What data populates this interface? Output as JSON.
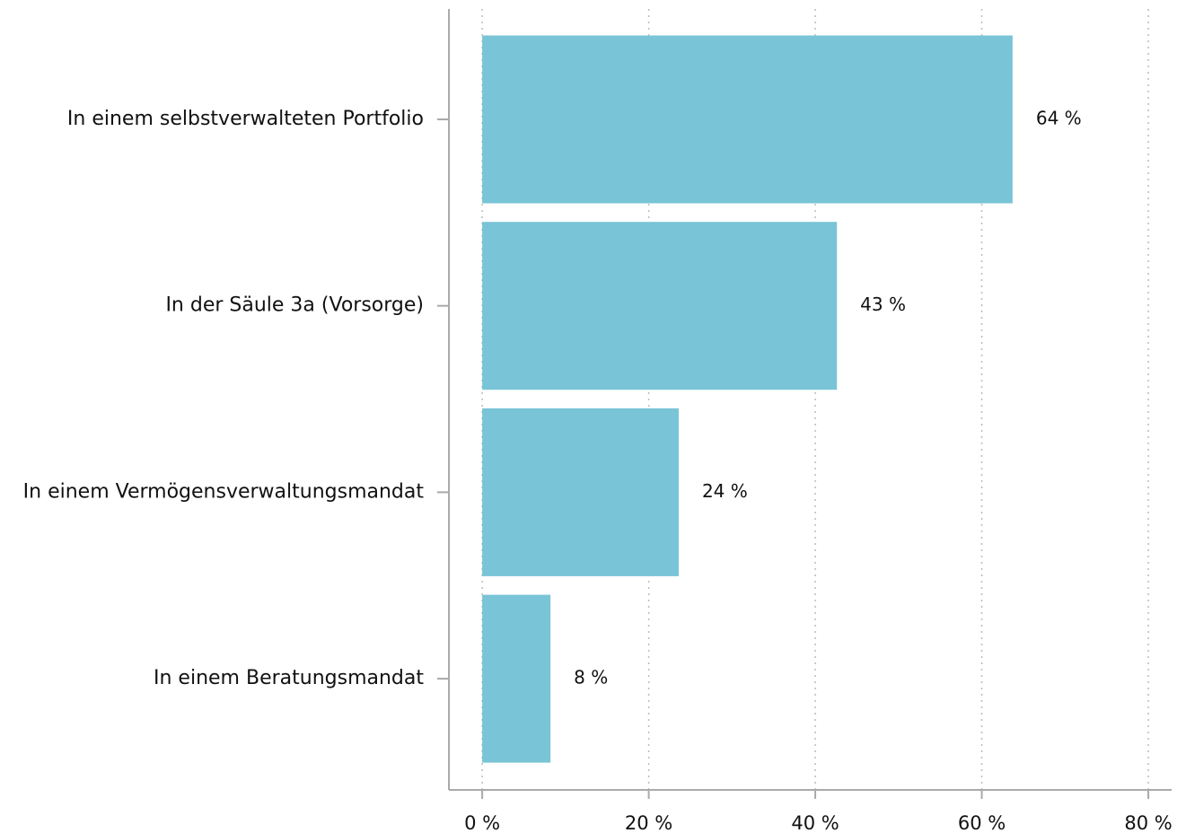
{
  "chart_data": {
    "type": "bar",
    "orientation": "horizontal",
    "categories": [
      "In einem selbstverwalteten Portfolio",
      "In der Säule 3a (Vorsorge)",
      "In einem Vermögensverwaltungsmandat",
      "In einem Beratungsmandat"
    ],
    "values": [
      63.7,
      42.6,
      23.6,
      8.2
    ],
    "value_labels": [
      "64 %",
      "43 %",
      "24 %",
      "8 %"
    ],
    "color": "#79c4d7",
    "xlim": [
      -4,
      82.8
    ],
    "xticks": [
      {
        "value": 0,
        "label": "0 %"
      },
      {
        "value": 20,
        "label": "20 %"
      },
      {
        "value": 40,
        "label": "40 %"
      },
      {
        "value": 60,
        "label": "60 %"
      },
      {
        "value": 80,
        "label": "80 %"
      }
    ],
    "grid": true
  }
}
